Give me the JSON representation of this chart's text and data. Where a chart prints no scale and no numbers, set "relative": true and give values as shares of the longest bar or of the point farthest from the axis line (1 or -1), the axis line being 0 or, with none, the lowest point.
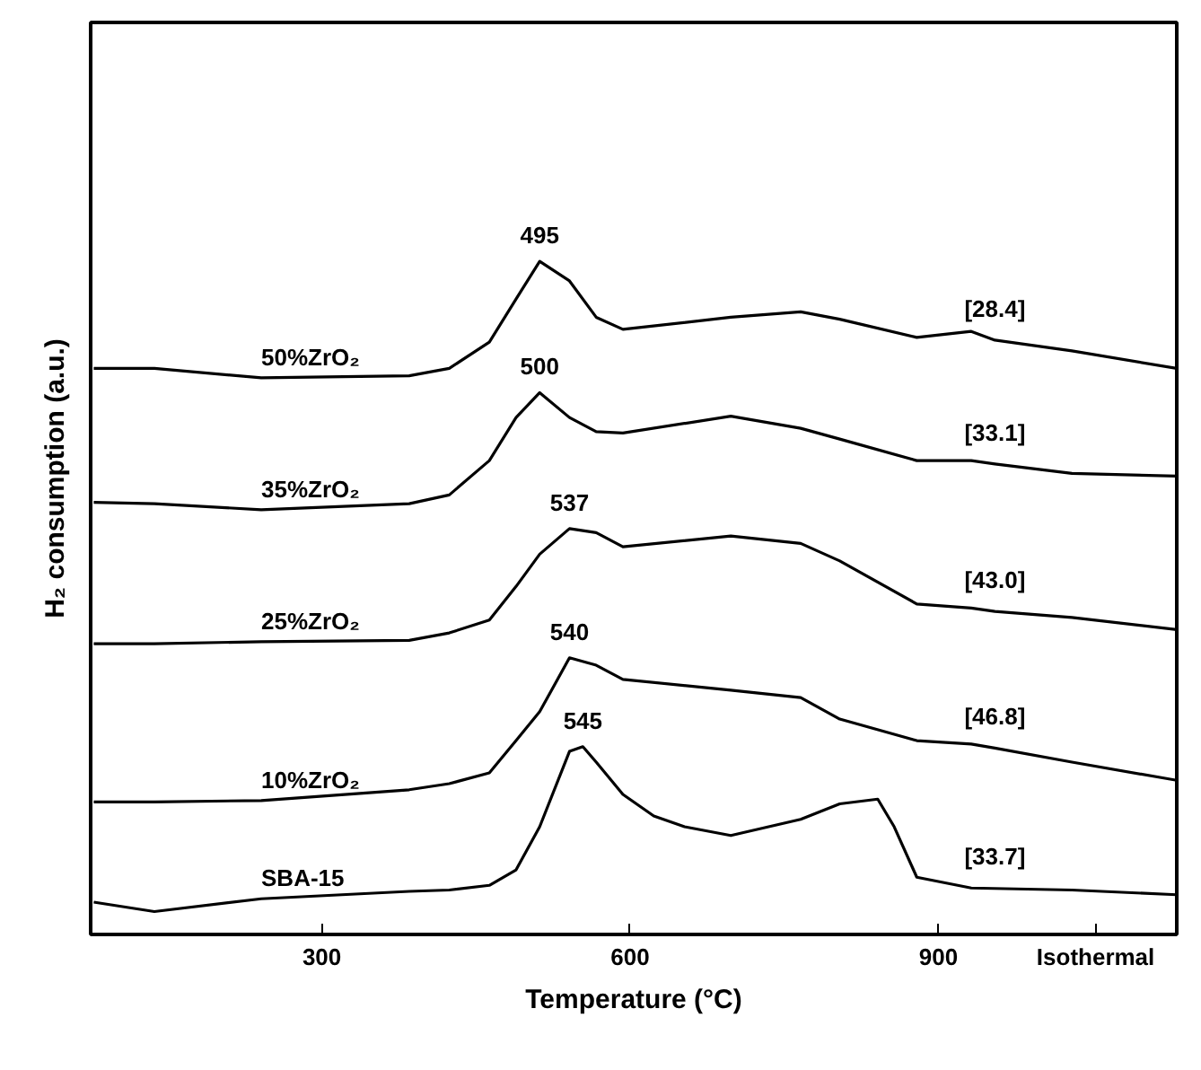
{
  "chart_data": {
    "type": "line",
    "relative": true,
    "xlabel": "Temperature (°C)",
    "ylabel": "H₂ consumption (a.u.)",
    "xlim": [
      75,
      1132
    ],
    "xticks": [
      300,
      600,
      900,
      {
        "value": 1053,
        "label": "Isothermal"
      }
    ],
    "tick_labels": "x",
    "grid": false,
    "marker": "none",
    "line_style": "solid",
    "series": [
      {
        "name": "50%ZrO₂",
        "color": "#000000",
        "x": [
          78,
          137,
          241,
          385,
          424,
          463,
          489,
          512,
          541,
          567,
          593,
          698,
          766,
          804,
          879,
          932,
          955,
          1030,
          1132
        ],
        "values": [
          0.841,
          0.841,
          0.827,
          0.83,
          0.841,
          0.88,
          0.944,
          1.0,
          0.971,
          0.917,
          0.899,
          0.917,
          0.925,
          0.914,
          0.887,
          0.896,
          0.883,
          0.867,
          0.841
        ]
      },
      {
        "name": "35%ZrO₂",
        "color": "#000000",
        "x": [
          78,
          137,
          241,
          385,
          424,
          463,
          489,
          512,
          541,
          567,
          593,
          698,
          766,
          804,
          879,
          932,
          955,
          1030,
          1132
        ],
        "values": [
          0.642,
          0.64,
          0.631,
          0.64,
          0.653,
          0.704,
          0.768,
          0.805,
          0.768,
          0.747,
          0.745,
          0.77,
          0.752,
          0.736,
          0.704,
          0.704,
          0.699,
          0.685,
          0.681
        ]
      },
      {
        "name": "25%ZrO₂",
        "color": "#000000",
        "x": [
          78,
          137,
          241,
          385,
          424,
          463,
          489,
          512,
          541,
          567,
          593,
          698,
          766,
          804,
          879,
          932,
          955,
          1030,
          1132
        ],
        "values": [
          0.432,
          0.432,
          0.435,
          0.437,
          0.448,
          0.467,
          0.517,
          0.565,
          0.603,
          0.597,
          0.576,
          0.592,
          0.581,
          0.555,
          0.491,
          0.485,
          0.48,
          0.471,
          0.453
        ]
      },
      {
        "name": "10%ZrO₂",
        "color": "#000000",
        "x": [
          78,
          137,
          241,
          385,
          424,
          463,
          489,
          512,
          541,
          567,
          593,
          698,
          766,
          804,
          879,
          932,
          955,
          1030,
          1132
        ],
        "values": [
          0.197,
          0.197,
          0.199,
          0.215,
          0.224,
          0.24,
          0.288,
          0.331,
          0.411,
          0.4,
          0.379,
          0.363,
          0.352,
          0.32,
          0.288,
          0.283,
          0.277,
          0.256,
          0.229
        ]
      },
      {
        "name": "SBA-15",
        "color": "#000000",
        "x": [
          78,
          137,
          241,
          385,
          424,
          463,
          489,
          512,
          541,
          554,
          567,
          593,
          623,
          653,
          698,
          766,
          804,
          841,
          857,
          879,
          932,
          1030,
          1132
        ],
        "values": [
          0.048,
          0.034,
          0.053,
          0.064,
          0.066,
          0.073,
          0.096,
          0.16,
          0.272,
          0.279,
          0.256,
          0.208,
          0.176,
          0.16,
          0.147,
          0.171,
          0.194,
          0.201,
          0.16,
          0.085,
          0.069,
          0.066,
          0.059
        ]
      }
    ],
    "annotations": [
      {
        "text": "495",
        "x": 512,
        "y": 1.0
      },
      {
        "text": "500",
        "x": 512,
        "y": 0.805
      },
      {
        "text": "537",
        "x": 541,
        "y": 0.603
      },
      {
        "text": "540",
        "x": 541,
        "y": 0.411
      },
      {
        "text": "545",
        "x": 554,
        "y": 0.279
      },
      {
        "text": "[28.4]",
        "x": 955,
        "y": 0.883
      },
      {
        "text": "[33.1]",
        "x": 955,
        "y": 0.699
      },
      {
        "text": "[43.0]",
        "x": 955,
        "y": 0.48
      },
      {
        "text": "[46.8]",
        "x": 955,
        "y": 0.277
      },
      {
        "text": "[33.7]",
        "x": 955,
        "y": 0.069
      }
    ]
  }
}
